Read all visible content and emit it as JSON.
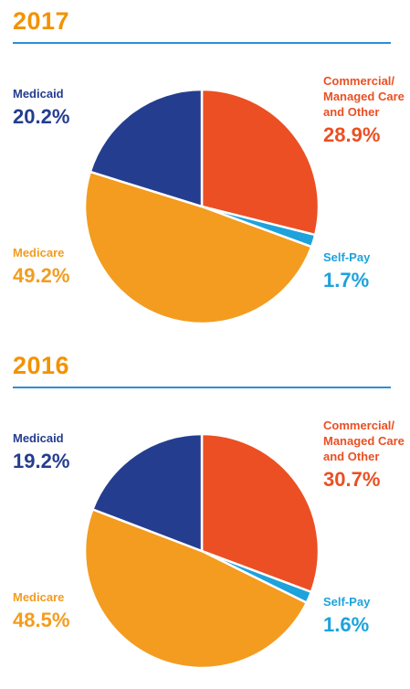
{
  "chart_data": [
    {
      "type": "pie",
      "title": "2017",
      "slices": [
        {
          "label": "Commercial/\nManaged Care\nand Other",
          "value": 28.9,
          "display": "28.9%",
          "color": "#eb4f23"
        },
        {
          "label": "Self-Pay",
          "value": 1.7,
          "display": "1.7%",
          "color": "#1da2dc"
        },
        {
          "label": "Medicare",
          "value": 49.2,
          "display": "49.2%",
          "color": "#f39c1f"
        },
        {
          "label": "Medicaid",
          "value": 20.2,
          "display": "20.2%",
          "color": "#243d8f"
        }
      ]
    },
    {
      "type": "pie",
      "title": "2016",
      "slices": [
        {
          "label": "Commercial/\nManaged Care\nand Other",
          "value": 30.7,
          "display": "30.7%",
          "color": "#eb4f23"
        },
        {
          "label": "Self-Pay",
          "value": 1.6,
          "display": "1.6%",
          "color": "#1da2dc"
        },
        {
          "label": "Medicare",
          "value": 48.5,
          "display": "48.5%",
          "color": "#f39c1f"
        },
        {
          "label": "Medicaid",
          "value": 19.2,
          "display": "19.2%",
          "color": "#243d8f"
        }
      ]
    }
  ],
  "colors": {
    "year_title": "#f39200",
    "rule": "#2e8fd6"
  }
}
